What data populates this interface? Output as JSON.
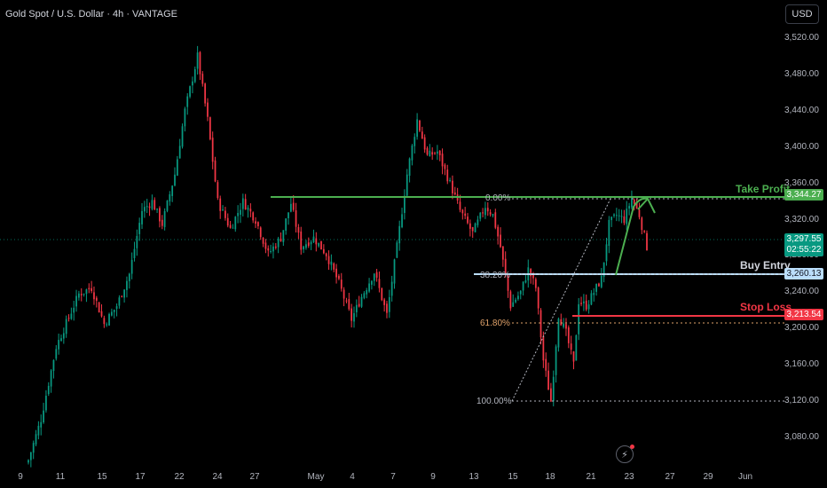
{
  "header": {
    "title": "Gold Spot / U.S. Dollar · 4h · VANTAGE",
    "currency_button": "USD"
  },
  "colors": {
    "up": "#089981",
    "down": "#f23645",
    "take_profit": "#4caf50",
    "buy_entry": "#bbdefb",
    "stop_loss": "#f23645",
    "fib": "#b2b5be"
  },
  "price_axis": {
    "ticks": [
      "3,520.00",
      "3,480.00",
      "3,440.00",
      "3,400.00",
      "3,360.00",
      "3,320.00",
      "3,280.00",
      "3,240.00",
      "3,200.00",
      "3,160.00",
      "3,120.00",
      "3,080.00"
    ]
  },
  "time_axis": {
    "ticks": [
      "9",
      "11",
      "15",
      "17",
      "22",
      "24",
      "27",
      "May",
      "4",
      "7",
      "9",
      "13",
      "15",
      "18",
      "21",
      "23",
      "27",
      "29",
      "Jun"
    ]
  },
  "levels": {
    "take_profit": {
      "label": "Take Profit",
      "price": "3,344.27"
    },
    "buy_entry": {
      "label": "Buy Entry",
      "price": "3,260.13"
    },
    "stop_loss": {
      "label": "Stop Loss",
      "price": "3,213.54"
    },
    "current": {
      "price": "3,297.55",
      "countdown": "02:55:22"
    }
  },
  "fib": {
    "level_0": "0.00%",
    "level_382": "38.20%",
    "level_618": "61.80%",
    "level_100": "100.00%"
  },
  "chart_data": {
    "type": "candlestick",
    "title": "Gold Spot / U.S. Dollar · 4h · VANTAGE",
    "ylim": [
      3050,
      3540
    ],
    "x_ticks": [
      "9",
      "11",
      "15",
      "17",
      "22",
      "24",
      "27",
      "May",
      "4",
      "7",
      "9",
      "13",
      "15",
      "18",
      "21",
      "23",
      "27",
      "29",
      "Jun"
    ],
    "anchors": [
      [
        0,
        3055
      ],
      [
        5,
        3100
      ],
      [
        11,
        3180
      ],
      [
        20,
        3238
      ],
      [
        25,
        3245
      ],
      [
        30,
        3205
      ],
      [
        35,
        3225
      ],
      [
        40,
        3260
      ],
      [
        45,
        3330
      ],
      [
        49,
        3340
      ],
      [
        53,
        3315
      ],
      [
        58,
        3370
      ],
      [
        62,
        3440
      ],
      [
        67,
        3500
      ],
      [
        71,
        3430
      ],
      [
        75,
        3340
      ],
      [
        80,
        3310
      ],
      [
        85,
        3340
      ],
      [
        90,
        3320
      ],
      [
        95,
        3282
      ],
      [
        100,
        3300
      ],
      [
        104,
        3338
      ],
      [
        108,
        3290
      ],
      [
        113,
        3300
      ],
      [
        118,
        3282
      ],
      [
        123,
        3250
      ],
      [
        128,
        3210
      ],
      [
        132,
        3235
      ],
      [
        137,
        3262
      ],
      [
        142,
        3215
      ],
      [
        146,
        3290
      ],
      [
        150,
        3370
      ],
      [
        154,
        3430
      ],
      [
        158,
        3390
      ],
      [
        162,
        3395
      ],
      [
        167,
        3360
      ],
      [
        171,
        3330
      ],
      [
        176,
        3305
      ],
      [
        181,
        3335
      ],
      [
        184,
        3325
      ],
      [
        187,
        3290
      ],
      [
        191,
        3225
      ],
      [
        195,
        3240
      ],
      [
        198,
        3265
      ],
      [
        201,
        3245
      ],
      [
        204,
        3165
      ],
      [
        207,
        3120
      ],
      [
        210,
        3215
      ],
      [
        213,
        3195
      ],
      [
        216,
        3160
      ],
      [
        218,
        3230
      ],
      [
        221,
        3225
      ],
      [
        224,
        3240
      ],
      [
        227,
        3255
      ],
      [
        230,
        3315
      ],
      [
        233,
        3325
      ],
      [
        236,
        3320
      ],
      [
        239,
        3344
      ],
      [
        242,
        3325
      ],
      [
        245,
        3290
      ]
    ]
  }
}
